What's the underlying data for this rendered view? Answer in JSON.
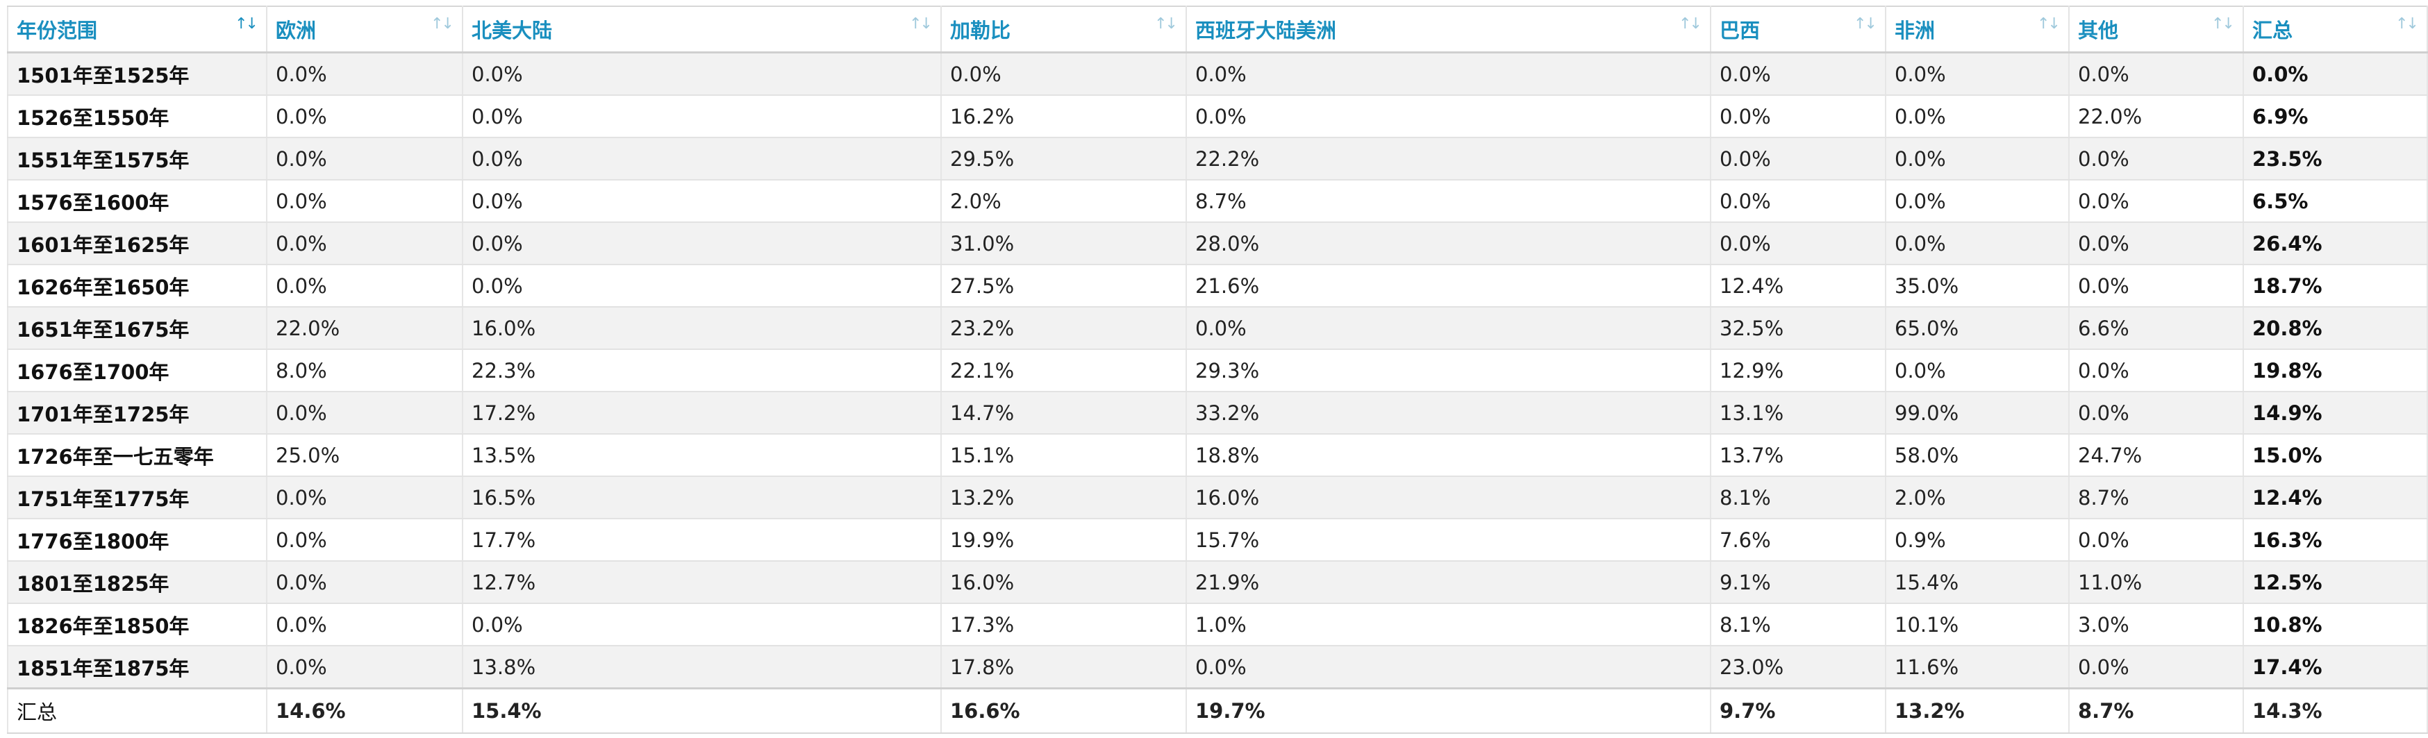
{
  "columns": [
    {
      "label": "年份范围",
      "sort_active": true
    },
    {
      "label": "欧洲",
      "sort_active": false
    },
    {
      "label": "北美大陆",
      "sort_active": false
    },
    {
      "label": "加勒比",
      "sort_active": false
    },
    {
      "label": "西班牙大陆美洲",
      "sort_active": false
    },
    {
      "label": "巴西",
      "sort_active": false
    },
    {
      "label": "非洲",
      "sort_active": false
    },
    {
      "label": "其他",
      "sort_active": false
    },
    {
      "label": "汇总",
      "sort_active": false
    }
  ],
  "sort_icon": "↑↓",
  "rows": [
    [
      "1501年至1525年",
      "0.0%",
      "0.0%",
      "0.0%",
      "0.0%",
      "0.0%",
      "0.0%",
      "0.0%",
      "0.0%"
    ],
    [
      "1526至1550年",
      "0.0%",
      "0.0%",
      "16.2%",
      "0.0%",
      "0.0%",
      "0.0%",
      "22.0%",
      "6.9%"
    ],
    [
      "1551年至1575年",
      "0.0%",
      "0.0%",
      "29.5%",
      "22.2%",
      "0.0%",
      "0.0%",
      "0.0%",
      "23.5%"
    ],
    [
      "1576至1600年",
      "0.0%",
      "0.0%",
      "2.0%",
      "8.7%",
      "0.0%",
      "0.0%",
      "0.0%",
      "6.5%"
    ],
    [
      "1601年至1625年",
      "0.0%",
      "0.0%",
      "31.0%",
      "28.0%",
      "0.0%",
      "0.0%",
      "0.0%",
      "26.4%"
    ],
    [
      "1626年至1650年",
      "0.0%",
      "0.0%",
      "27.5%",
      "21.6%",
      "12.4%",
      "35.0%",
      "0.0%",
      "18.7%"
    ],
    [
      "1651年至1675年",
      "22.0%",
      "16.0%",
      "23.2%",
      "0.0%",
      "32.5%",
      "65.0%",
      "6.6%",
      "20.8%"
    ],
    [
      "1676至1700年",
      "8.0%",
      "22.3%",
      "22.1%",
      "29.3%",
      "12.9%",
      "0.0%",
      "0.0%",
      "19.8%"
    ],
    [
      "1701年至1725年",
      "0.0%",
      "17.2%",
      "14.7%",
      "33.2%",
      "13.1%",
      "99.0%",
      "0.0%",
      "14.9%"
    ],
    [
      "1726年至一七五零年",
      "25.0%",
      "13.5%",
      "15.1%",
      "18.8%",
      "13.7%",
      "58.0%",
      "24.7%",
      "15.0%"
    ],
    [
      "1751年至1775年",
      "0.0%",
      "16.5%",
      "13.2%",
      "16.0%",
      "8.1%",
      "2.0%",
      "8.7%",
      "12.4%"
    ],
    [
      "1776至1800年",
      "0.0%",
      "17.7%",
      "19.9%",
      "15.7%",
      "7.6%",
      "0.9%",
      "0.0%",
      "16.3%"
    ],
    [
      "1801至1825年",
      "0.0%",
      "12.7%",
      "16.0%",
      "21.9%",
      "9.1%",
      "15.4%",
      "11.0%",
      "12.5%"
    ],
    [
      "1826年至1850年",
      "0.0%",
      "0.0%",
      "17.3%",
      "1.0%",
      "8.1%",
      "10.1%",
      "3.0%",
      "10.8%"
    ],
    [
      "1851年至1875年",
      "0.0%",
      "13.8%",
      "17.8%",
      "0.0%",
      "23.0%",
      "11.6%",
      "0.0%",
      "17.4%"
    ]
  ],
  "footer": [
    "汇总",
    "14.6%",
    "15.4%",
    "16.6%",
    "19.7%",
    "9.7%",
    "13.2%",
    "8.7%",
    "14.3%"
  ],
  "colors": {
    "header_text": "#1a8fbf",
    "stripe": "#f2f2f2"
  }
}
